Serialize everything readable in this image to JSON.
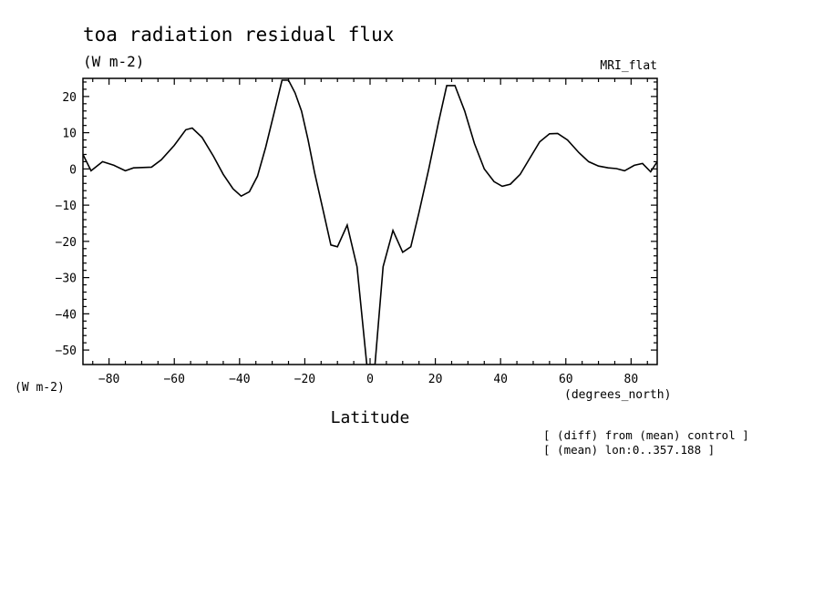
{
  "chart_data": {
    "type": "line",
    "title": "toa radiation residual flux",
    "units_label": "(W m-2)",
    "model_label": "MRI_flat",
    "ylabel": "(W m-2)",
    "xlabel": "Latitude",
    "x_units": "(degrees_north)",
    "notes": [
      "[ (diff) from (mean) control ]",
      "[ (mean) lon:0..357.188 ]"
    ],
    "xlim": [
      -88,
      88
    ],
    "ylim": [
      -54,
      25
    ],
    "x_ticks": [
      -80,
      -60,
      -40,
      -20,
      0,
      20,
      40,
      60,
      80
    ],
    "y_ticks": [
      20,
      10,
      0,
      -10,
      -20,
      -30,
      -40,
      -50
    ],
    "grid": false,
    "series": [
      {
        "points": [
          [
            -88,
            4
          ],
          [
            -85.5,
            -0.5
          ],
          [
            -82,
            2
          ],
          [
            -78.5,
            1
          ],
          [
            -75,
            -0.5
          ],
          [
            -72.5,
            0.3
          ],
          [
            -67,
            0.5
          ],
          [
            -64,
            2.5
          ],
          [
            -60,
            6.5
          ],
          [
            -56.5,
            10.8
          ],
          [
            -54.5,
            11.3
          ],
          [
            -51.5,
            8.7
          ],
          [
            -48,
            3.5
          ],
          [
            -45,
            -1.5
          ],
          [
            -42,
            -5.5
          ],
          [
            -39.5,
            -7.5
          ],
          [
            -37,
            -6.3
          ],
          [
            -34.5,
            -2
          ],
          [
            -32,
            6
          ],
          [
            -29,
            17
          ],
          [
            -27,
            24.5
          ],
          [
            -25,
            24.5
          ],
          [
            -23,
            21
          ],
          [
            -21,
            16
          ],
          [
            -19,
            8
          ],
          [
            -17,
            -1
          ],
          [
            -14.5,
            -11
          ],
          [
            -12,
            -21
          ],
          [
            -10,
            -21.5
          ],
          [
            -7,
            -15.5
          ],
          [
            -4,
            -27
          ],
          [
            -1,
            -54
          ],
          [
            1.5,
            -54
          ],
          [
            4,
            -27
          ],
          [
            7,
            -17
          ],
          [
            10,
            -23
          ],
          [
            12.5,
            -21.5
          ],
          [
            15,
            -12
          ],
          [
            18,
            0
          ],
          [
            21,
            13
          ],
          [
            23.5,
            23
          ],
          [
            26,
            23
          ],
          [
            29,
            16
          ],
          [
            32,
            7
          ],
          [
            35,
            0
          ],
          [
            38,
            -3.5
          ],
          [
            40.5,
            -4.8
          ],
          [
            43,
            -4.2
          ],
          [
            46,
            -1.5
          ],
          [
            49,
            3
          ],
          [
            52,
            7.5
          ],
          [
            55,
            9.7
          ],
          [
            57.5,
            9.8
          ],
          [
            60.5,
            8
          ],
          [
            64,
            4.5
          ],
          [
            67,
            2
          ],
          [
            70,
            0.8
          ],
          [
            73,
            0.3
          ],
          [
            75.5,
            0.1
          ],
          [
            78,
            -0.5
          ],
          [
            81,
            1
          ],
          [
            83.5,
            1.5
          ],
          [
            86,
            -0.8
          ],
          [
            88,
            2
          ]
        ]
      }
    ]
  }
}
